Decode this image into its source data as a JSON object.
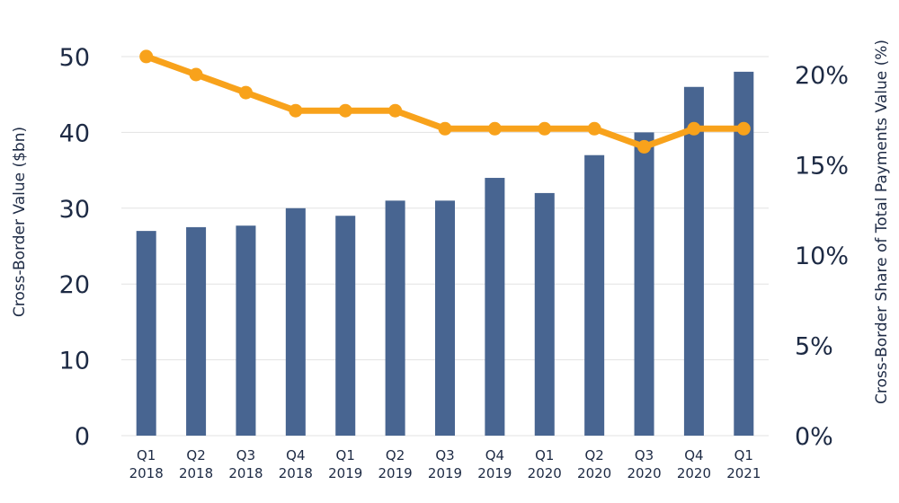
{
  "chart_data": {
    "type": "bar+line",
    "categories": [
      [
        "Q1",
        "2018"
      ],
      [
        "Q2",
        "2018"
      ],
      [
        "Q3",
        "2018"
      ],
      [
        "Q4",
        "2018"
      ],
      [
        "Q1",
        "2019"
      ],
      [
        "Q2",
        "2019"
      ],
      [
        "Q3",
        "2019"
      ],
      [
        "Q4",
        "2019"
      ],
      [
        "Q1",
        "2020"
      ],
      [
        "Q2",
        "2020"
      ],
      [
        "Q3",
        "2020"
      ],
      [
        "Q4",
        "2020"
      ],
      [
        "Q1",
        "2021"
      ]
    ],
    "bar_series": {
      "values": [
        27,
        27.5,
        27.7,
        30,
        29,
        31,
        31,
        34,
        32,
        37,
        40,
        46,
        48
      ],
      "color": "#486591"
    },
    "line_series": {
      "values": [
        21,
        20,
        19,
        18,
        18,
        18,
        17,
        17,
        17,
        17,
        16,
        17,
        17
      ],
      "color": "#f8a21b"
    },
    "ylabel_left": "Cross-Border Value ($bn)",
    "ylabel_right": "Cross-Border Share of Total Payments Value (%)",
    "ylim_left": [
      0,
      50
    ],
    "yticks_left": [
      "0",
      "10",
      "20",
      "30",
      "40",
      "50"
    ],
    "ylim_right": [
      0,
      20
    ],
    "yticks_right": [
      "0%",
      "5%",
      "10%",
      "15%",
      "20%"
    ],
    "grid": true,
    "gridline_color": "#e3e3e3"
  }
}
